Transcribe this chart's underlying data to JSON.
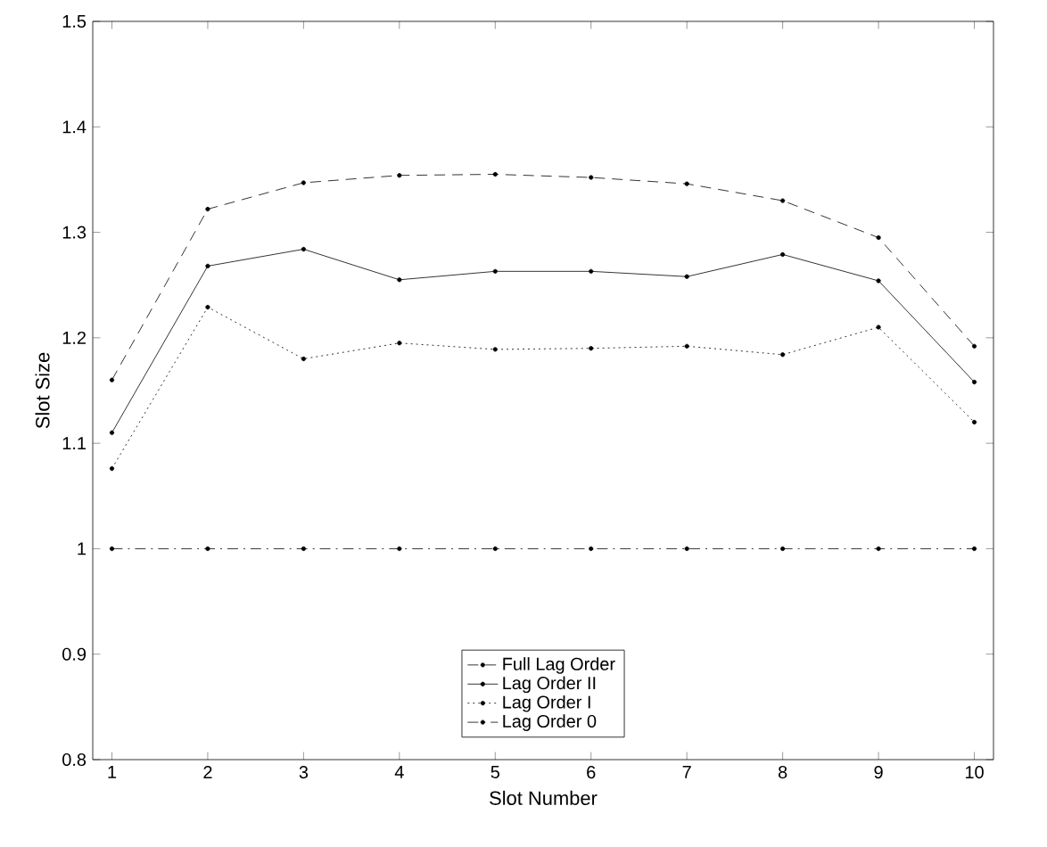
{
  "chart_data": {
    "type": "line",
    "xlabel": "Slot Number",
    "ylabel": "Slot Size",
    "x": [
      1,
      2,
      3,
      4,
      5,
      6,
      7,
      8,
      9,
      10
    ],
    "xlim": [
      0.8,
      10.2
    ],
    "ylim": [
      0.8,
      1.5
    ],
    "xticks": [
      1,
      2,
      3,
      4,
      5,
      6,
      7,
      8,
      9,
      10
    ],
    "yticks": [
      0.8,
      0.9,
      1,
      1.1,
      1.2,
      1.3,
      1.4,
      1.5
    ],
    "marker": "circle",
    "legend": "bottom",
    "grid": false,
    "series": [
      {
        "name": "Full Lag Order",
        "color": "#000000",
        "line_style": "dashed",
        "values": [
          1.16,
          1.322,
          1.347,
          1.354,
          1.355,
          1.352,
          1.346,
          1.33,
          1.295,
          1.192
        ]
      },
      {
        "name": "Lag Order II",
        "color": "#000000",
        "line_style": "solid",
        "values": [
          1.11,
          1.268,
          1.284,
          1.255,
          1.263,
          1.263,
          1.258,
          1.279,
          1.254,
          1.158
        ]
      },
      {
        "name": "Lag Order I",
        "color": "#000000",
        "line_style": "dotted",
        "values": [
          1.076,
          1.229,
          1.18,
          1.195,
          1.189,
          1.19,
          1.192,
          1.184,
          1.21,
          1.12
        ]
      },
      {
        "name": "Lag Order 0",
        "color": "#000000",
        "line_style": "dashdot",
        "values": [
          1,
          1,
          1,
          1,
          1,
          1,
          1,
          1,
          1,
          1
        ]
      }
    ]
  }
}
